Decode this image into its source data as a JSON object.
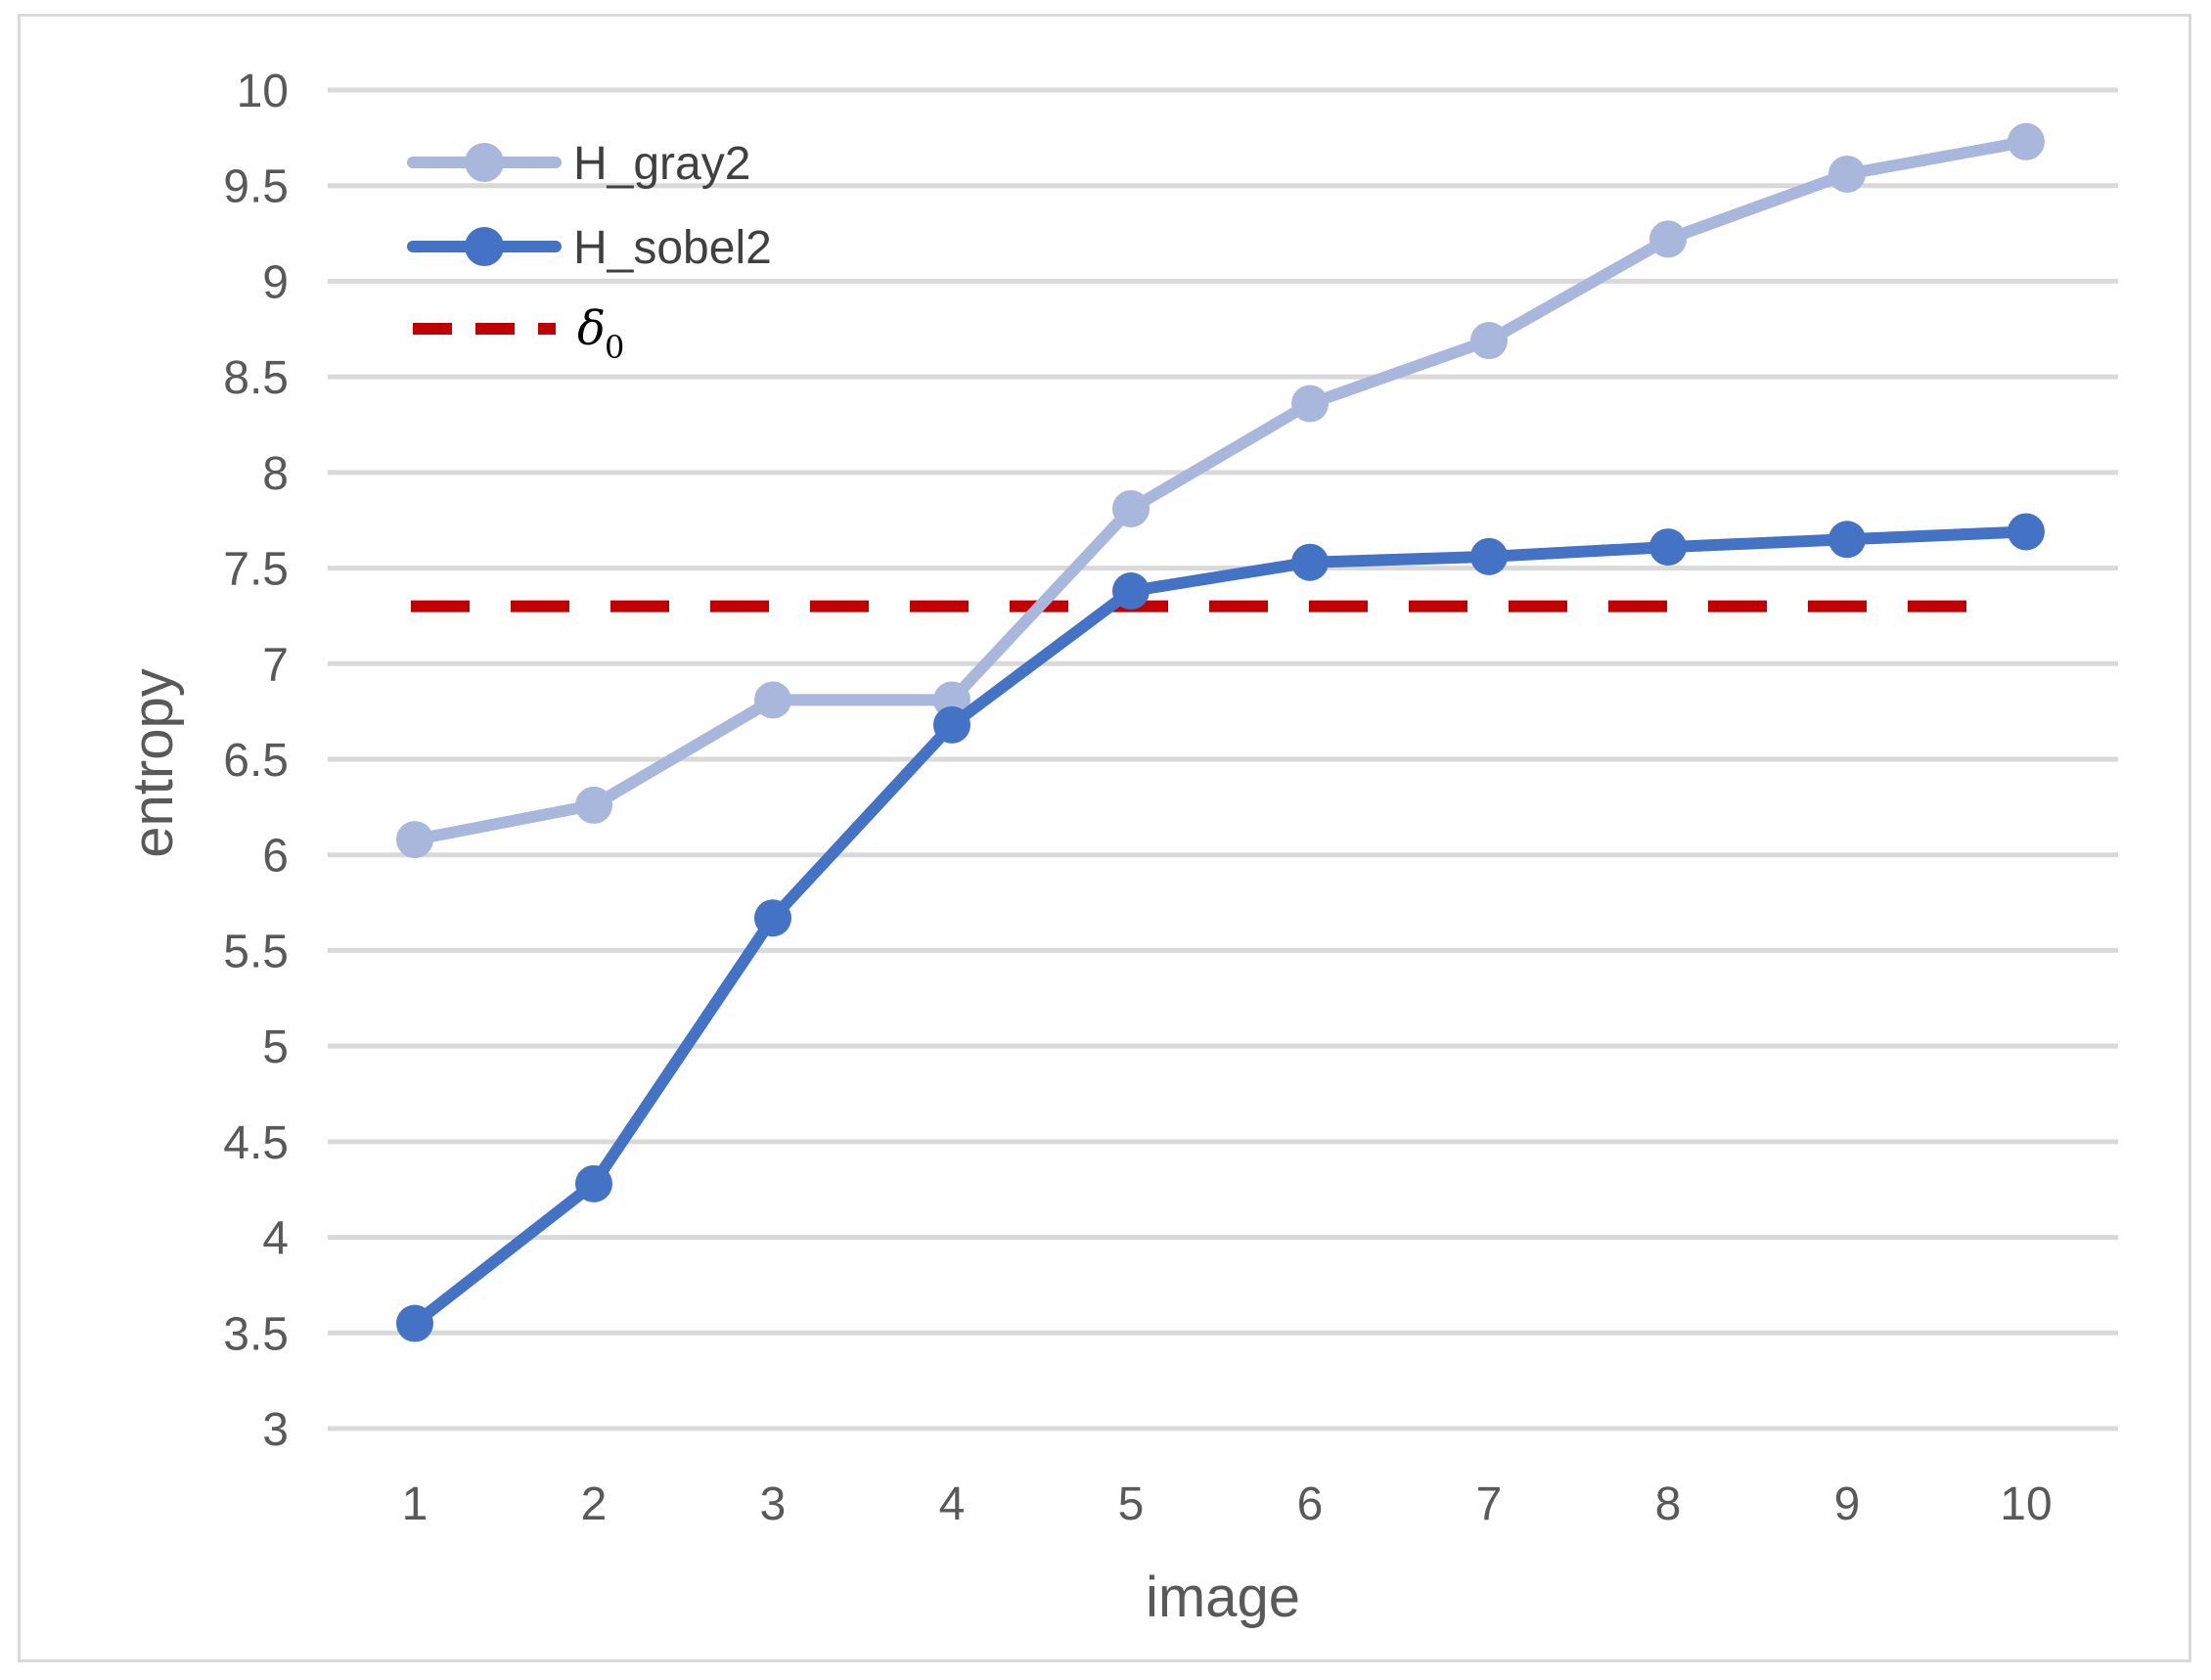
{
  "chart_data": {
    "type": "line",
    "title": "",
    "xlabel": "image",
    "ylabel": "entropy",
    "categories": [
      "1",
      "2",
      "3",
      "4",
      "5",
      "6",
      "7",
      "8",
      "9",
      "10"
    ],
    "ylim": [
      3,
      10
    ],
    "yticks": [
      "3",
      "3.5",
      "4",
      "4.5",
      "5",
      "5.5",
      "6",
      "6.5",
      "7",
      "7.5",
      "8",
      "8.5",
      "9",
      "9.5",
      "10"
    ],
    "grid": true,
    "legend_position": "top-left",
    "series": [
      {
        "name": "H_gray2",
        "color": "#a9b7dc",
        "marker": "circle",
        "values": [
          6.08,
          6.26,
          6.81,
          6.81,
          7.81,
          8.36,
          8.69,
          9.22,
          9.56,
          9.73
        ]
      },
      {
        "name": "H_sobel2",
        "color": "#4472c4",
        "marker": "circle",
        "values": [
          3.55,
          4.28,
          5.67,
          6.68,
          7.38,
          7.53,
          7.56,
          7.61,
          7.65,
          7.69
        ]
      }
    ],
    "threshold": {
      "name": "δ",
      "subscript": "0",
      "value": 7.3,
      "color": "#c00000",
      "style": "dashed"
    }
  }
}
